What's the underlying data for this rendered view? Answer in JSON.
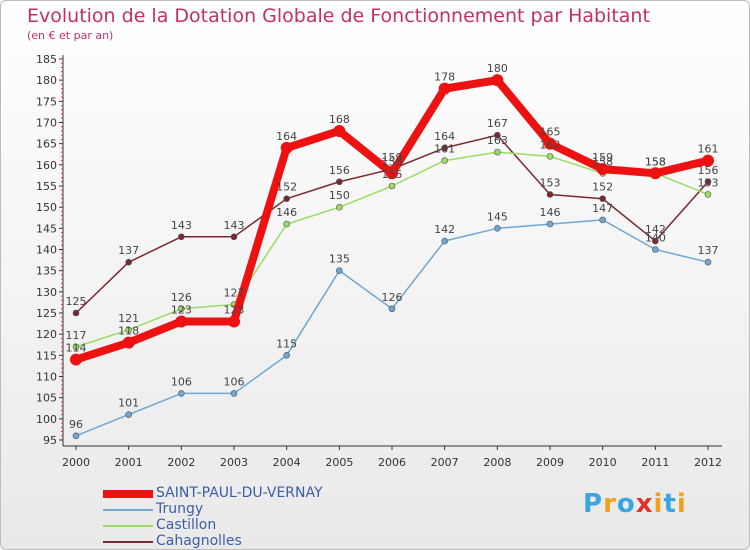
{
  "title": "Evolution de la Dotation Globale de Fonctionnement par Habitant",
  "subtitle": "(en € et par an)",
  "logo": {
    "letters": [
      "P",
      "r",
      "o",
      "x",
      "i",
      "t",
      "i"
    ],
    "colors": [
      "#3aa6e0",
      "#f0a21d",
      "#3aa6e0",
      "#e5322d",
      "#f0a21d",
      "#3aa6e0",
      "#f0a21d"
    ]
  },
  "chart_data": {
    "type": "line",
    "x": [
      "2000",
      "2001",
      "2002",
      "2003",
      "2004",
      "2005",
      "2006",
      "2007",
      "2008",
      "2009",
      "2010",
      "2011",
      "2012"
    ],
    "ylim": [
      95,
      185
    ],
    "yticks": [
      95,
      100,
      105,
      110,
      115,
      120,
      125,
      130,
      135,
      140,
      145,
      150,
      155,
      160,
      165,
      170,
      175,
      180,
      185
    ],
    "grid": false,
    "legend_position": "bottom-left",
    "series": [
      {
        "name": "Cahagnolles",
        "color": "#7a2830",
        "values": [
          125,
          137,
          143,
          143,
          152,
          156,
          159,
          164,
          167,
          153,
          152,
          142,
          156
        ]
      },
      {
        "name": "Castillon",
        "color": "#9bdc64",
        "values": [
          117,
          121,
          126,
          127,
          146,
          150,
          155,
          161,
          163,
          162,
          158,
          158,
          153
        ]
      },
      {
        "name": "Trungy",
        "color": "#6fa7d4",
        "values": [
          96,
          101,
          106,
          106,
          115,
          135,
          126,
          142,
          145,
          146,
          147,
          140,
          137
        ]
      },
      {
        "name": "SAINT-PAUL-DU-VERNAY",
        "color": "#ee1111",
        "values": [
          114,
          118,
          123,
          123,
          164,
          168,
          158,
          178,
          180,
          165,
          159,
          158,
          161
        ]
      }
    ],
    "legend_order": [
      "SAINT-PAUL-DU-VERNAY",
      "Trungy",
      "Castillon",
      "Cahagnolles"
    ]
  }
}
